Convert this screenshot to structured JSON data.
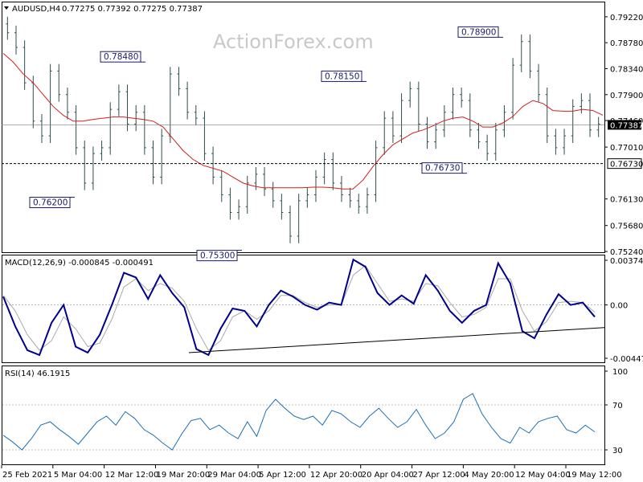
{
  "header": {
    "symbol": "AUDUSD,H4",
    "ohlc": "0.77275 0.77392 0.77275 0.77387",
    "watermark": "ActionForex.com"
  },
  "colors": {
    "candle": "#2f4f4f",
    "ma": "#d21f1f",
    "macd": "#00008b",
    "signal": "#a9a9a9",
    "level": "#000000",
    "label": "#1a1a6a"
  },
  "chart_data": [
    {
      "type": "bar",
      "name": "price",
      "ylim": [
        0.7524,
        0.7945
      ],
      "yticks": [
        "0.79220",
        "0.78780",
        "0.78340",
        "0.77900",
        "0.77460",
        "0.77387",
        "0.77010",
        "0.76730",
        "0.76130",
        "0.75680",
        "0.75240"
      ],
      "current_price": 0.77387,
      "support_level": 0.7673,
      "annotations": [
        {
          "text": "0.78480",
          "value": 0.7848
        },
        {
          "text": "0.78150",
          "value": 0.7815
        },
        {
          "text": "0.78900",
          "value": 0.789
        },
        {
          "text": "0.76730",
          "value": 0.7673
        },
        {
          "text": "0.76200",
          "value": 0.762
        },
        {
          "text": "0.75300",
          "value": 0.753
        }
      ],
      "moving_average": [
        0.786,
        0.7845,
        0.7825,
        0.781,
        0.779,
        0.777,
        0.7755,
        0.7745,
        0.7745,
        0.7748,
        0.775,
        0.7752,
        0.7752,
        0.775,
        0.7748,
        0.7745,
        0.7735,
        0.7715,
        0.7695,
        0.768,
        0.767,
        0.7665,
        0.766,
        0.765,
        0.764,
        0.7635,
        0.7632,
        0.7632,
        0.7632,
        0.7632,
        0.7632,
        0.7633,
        0.7633,
        0.7632,
        0.763,
        0.763,
        0.7645,
        0.7668,
        0.7688,
        0.7705,
        0.7715,
        0.7725,
        0.773,
        0.7737,
        0.7745,
        0.775,
        0.7752,
        0.7745,
        0.7735,
        0.7735,
        0.7742,
        0.7753,
        0.777,
        0.778,
        0.7775,
        0.7763,
        0.7762,
        0.7762,
        0.7765,
        0.7763,
        0.7755
      ],
      "closes": [
        0.7895,
        0.787,
        0.781,
        0.7745,
        0.772,
        0.783,
        0.779,
        0.776,
        0.77,
        0.764,
        0.769,
        0.77,
        0.7765,
        0.7795,
        0.774,
        0.776,
        0.77,
        0.765,
        0.772,
        0.7825,
        0.78,
        0.776,
        0.775,
        0.769,
        0.765,
        0.762,
        0.759,
        0.76,
        0.764,
        0.7655,
        0.763,
        0.761,
        0.759,
        0.755,
        0.761,
        0.762,
        0.765,
        0.768,
        0.764,
        0.762,
        0.761,
        0.76,
        0.762,
        0.77,
        0.775,
        0.772,
        0.778,
        0.78,
        0.774,
        0.771,
        0.773,
        0.776,
        0.779,
        0.778,
        0.773,
        0.771,
        0.769,
        0.773,
        0.776,
        0.784,
        0.788,
        0.783,
        0.779,
        0.772,
        0.77,
        0.772,
        0.777,
        0.778,
        0.773,
        0.774
      ]
    },
    {
      "type": "line",
      "name": "MACD(12,26,9)",
      "header": "MACD(12,26,9) -0.000845 -0.000491",
      "ylim": [
        -0.004475,
        0.003746
      ],
      "yticks": [
        "0.003746",
        "0.00",
        "-0.004475"
      ],
      "macd": [
        0.0007,
        -0.0018,
        -0.0038,
        -0.0042,
        -0.0015,
        0.0,
        -0.0035,
        -0.004,
        -0.0025,
        0.0,
        0.0027,
        0.0023,
        0.0005,
        0.0025,
        0.001,
        -0.0002,
        -0.0037,
        -0.0042,
        -0.002,
        -0.0003,
        -0.0005,
        -0.0018,
        0.0,
        0.0012,
        0.0007,
        0.0,
        -0.0004,
        0.0002,
        0.0,
        0.0038,
        0.0032,
        0.001,
        0.0,
        0.0008,
        0.0001,
        0.0025,
        0.0012,
        -0.0005,
        -0.0015,
        -0.0005,
        0.0,
        0.0035,
        0.0018,
        -0.0022,
        -0.0028,
        -0.0008,
        0.0009,
        0.0,
        0.0002,
        -0.001
      ],
      "signal": [
        0.0008,
        -0.0005,
        -0.0025,
        -0.0038,
        -0.003,
        -0.001,
        -0.002,
        -0.0035,
        -0.0032,
        -0.0012,
        0.0015,
        0.0022,
        0.0012,
        0.0018,
        0.0014,
        0.0003,
        -0.002,
        -0.0038,
        -0.003,
        -0.001,
        -0.0005,
        -0.0012,
        -0.0005,
        0.0008,
        0.0008,
        0.0002,
        -0.0002,
        0.0,
        0.0,
        0.0025,
        0.0033,
        0.0018,
        0.0003,
        0.0005,
        0.0003,
        0.0018,
        0.0016,
        0.0002,
        -0.001,
        -0.0008,
        -0.0002,
        0.0022,
        0.0022,
        -0.0005,
        -0.0022,
        -0.0014,
        0.0002,
        0.0003,
        0.0002,
        -0.0006
      ],
      "trendline": [
        -0.004,
        -0.0019
      ]
    },
    {
      "type": "line",
      "name": "RSI(14)",
      "header": "RSI(14) 46.1915",
      "ylim": [
        30,
        100
      ],
      "yticks": [
        "100",
        "70",
        "30"
      ],
      "levels": [
        70,
        30
      ],
      "values": [
        43,
        37,
        30,
        40,
        52,
        55,
        48,
        42,
        35,
        45,
        55,
        60,
        52,
        64,
        58,
        48,
        43,
        36,
        30,
        44,
        56,
        58,
        48,
        52,
        45,
        40,
        55,
        42,
        65,
        75,
        67,
        60,
        57,
        60,
        52,
        65,
        62,
        55,
        50,
        60,
        67,
        58,
        50,
        55,
        66,
        52,
        40,
        45,
        55,
        75,
        80,
        62,
        50,
        40,
        36,
        50,
        45,
        55,
        58,
        60,
        48,
        45,
        52,
        46
      ]
    }
  ],
  "x_axis": {
    "labels": [
      "25 Feb 2021",
      "5 Mar 04:00",
      "12 Mar 12:00",
      "19 Mar 20:00",
      "29 Mar 04:00",
      "5 Apr 12:00",
      "12 Apr 20:00",
      "20 Apr 04:00",
      "27 Apr 12:00",
      "4 May 20:00",
      "12 May 04:00",
      "19 May 12:00"
    ]
  }
}
